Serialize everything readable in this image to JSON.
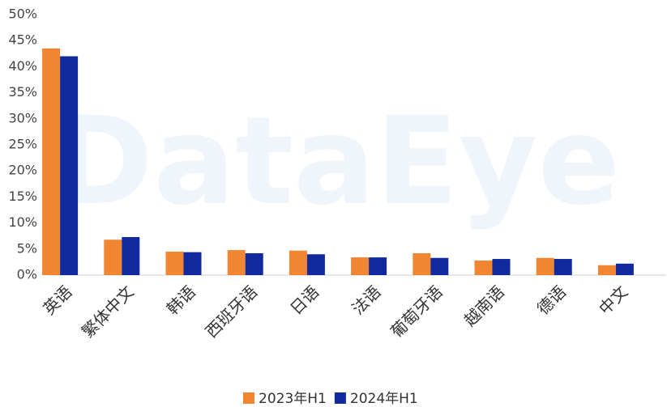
{
  "chart_data": {
    "type": "bar",
    "watermark": "DataEye",
    "categories": [
      "英语",
      "繁体中文",
      "韩语",
      "西班牙语",
      "日语",
      "法语",
      "葡萄牙语",
      "越南语",
      "德语",
      "中文"
    ],
    "series": [
      {
        "name": "2023年H1",
        "color": "#f08532",
        "values": [
          43.5,
          6.8,
          4.5,
          4.8,
          4.7,
          3.4,
          4.2,
          2.8,
          3.3,
          1.9
        ]
      },
      {
        "name": "2024年H1",
        "color": "#10299c",
        "values": [
          42.0,
          7.3,
          4.4,
          4.2,
          4.0,
          3.4,
          3.3,
          3.1,
          3.1,
          2.2
        ]
      }
    ],
    "ylim": [
      0,
      50
    ],
    "yticks": [
      {
        "value": 0,
        "label": "0%"
      },
      {
        "value": 5,
        "label": "5%"
      },
      {
        "value": 10,
        "label": "10%"
      },
      {
        "value": 15,
        "label": "15%"
      },
      {
        "value": 20,
        "label": "20%"
      },
      {
        "value": 25,
        "label": "25%"
      },
      {
        "value": 30,
        "label": "30%"
      },
      {
        "value": 35,
        "label": "35%"
      },
      {
        "value": 40,
        "label": "40%"
      },
      {
        "value": 45,
        "label": "45%"
      },
      {
        "value": 50,
        "label": "50%"
      }
    ],
    "legend": "bottom",
    "grid": false
  }
}
